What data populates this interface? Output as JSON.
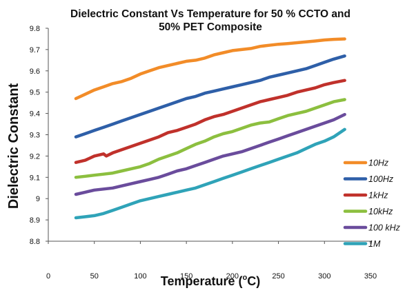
{
  "chart_data": {
    "type": "line",
    "title_line1": "Dielectric Constant Vs Temperature for 50 % CCTO and",
    "title_line2": "50% PET Composite",
    "xlabel_main": "Temperature  (",
    "xlabel_sup": "o",
    "xlabel_end": "C)",
    "ylabel": "Dielectric Constant",
    "xlim": [
      0,
      350
    ],
    "ylim": [
      8.8,
      9.8
    ],
    "xticks": [
      0,
      50,
      100,
      150,
      200,
      250,
      300,
      350
    ],
    "yticks": [
      8.8,
      8.9,
      9,
      9.1,
      9.2,
      9.3,
      9.4,
      9.5,
      9.6,
      9.7,
      9.8
    ],
    "ytick_labels": [
      "8.8",
      "8.9",
      "9",
      "9.1",
      "9.2",
      "9.3",
      "9.4",
      "9.5",
      "9.6",
      "9.7",
      "9.8"
    ],
    "grid": false,
    "legend_position": "right",
    "series": [
      {
        "name": "10Hz",
        "color": "#F28C28",
        "x": [
          30,
          40,
          50,
          60,
          70,
          80,
          90,
          100,
          110,
          120,
          130,
          140,
          150,
          160,
          170,
          180,
          190,
          200,
          210,
          220,
          230,
          240,
          250,
          260,
          270,
          280,
          290,
          300,
          310,
          322
        ],
        "y": [
          9.47,
          9.49,
          9.51,
          9.525,
          9.54,
          9.55,
          9.565,
          9.585,
          9.6,
          9.615,
          9.625,
          9.635,
          9.645,
          9.65,
          9.66,
          9.675,
          9.685,
          9.695,
          9.7,
          9.705,
          9.715,
          9.72,
          9.725,
          9.728,
          9.732,
          9.736,
          9.74,
          9.745,
          9.748,
          9.75
        ]
      },
      {
        "name": "100Hz",
        "color": "#2E5FA8",
        "x": [
          30,
          40,
          50,
          60,
          70,
          80,
          90,
          100,
          110,
          120,
          130,
          140,
          150,
          160,
          170,
          180,
          190,
          200,
          210,
          220,
          230,
          240,
          250,
          260,
          270,
          280,
          290,
          300,
          310,
          322
        ],
        "y": [
          9.29,
          9.305,
          9.32,
          9.335,
          9.35,
          9.365,
          9.38,
          9.395,
          9.41,
          9.425,
          9.44,
          9.455,
          9.47,
          9.48,
          9.495,
          9.505,
          9.515,
          9.525,
          9.535,
          9.545,
          9.555,
          9.57,
          9.58,
          9.59,
          9.6,
          9.61,
          9.625,
          9.64,
          9.655,
          9.67
        ]
      },
      {
        "name": "1kHz",
        "color": "#C0312B",
        "x": [
          30,
          40,
          50,
          60,
          63,
          70,
          80,
          90,
          100,
          110,
          120,
          130,
          140,
          150,
          160,
          170,
          180,
          190,
          200,
          210,
          220,
          230,
          240,
          250,
          260,
          270,
          280,
          290,
          300,
          310,
          322
        ],
        "y": [
          9.17,
          9.18,
          9.2,
          9.21,
          9.2,
          9.215,
          9.23,
          9.245,
          9.26,
          9.275,
          9.29,
          9.31,
          9.32,
          9.335,
          9.35,
          9.37,
          9.385,
          9.395,
          9.41,
          9.425,
          9.44,
          9.455,
          9.465,
          9.475,
          9.485,
          9.5,
          9.51,
          9.52,
          9.535,
          9.545,
          9.555
        ]
      },
      {
        "name": "10kHz",
        "color": "#8CBF3F",
        "x": [
          30,
          40,
          50,
          60,
          70,
          80,
          90,
          100,
          110,
          120,
          130,
          140,
          150,
          160,
          170,
          180,
          190,
          200,
          210,
          220,
          230,
          240,
          250,
          260,
          270,
          280,
          290,
          300,
          310,
          322
        ],
        "y": [
          9.1,
          9.105,
          9.11,
          9.115,
          9.12,
          9.13,
          9.14,
          9.15,
          9.165,
          9.185,
          9.2,
          9.215,
          9.235,
          9.255,
          9.27,
          9.29,
          9.305,
          9.315,
          9.33,
          9.345,
          9.355,
          9.36,
          9.375,
          9.39,
          9.4,
          9.41,
          9.425,
          9.44,
          9.455,
          9.465
        ]
      },
      {
        "name": "100 kHz",
        "color": "#6A4C9C",
        "x": [
          30,
          40,
          50,
          60,
          70,
          80,
          90,
          100,
          110,
          120,
          130,
          140,
          150,
          160,
          170,
          180,
          190,
          200,
          210,
          220,
          230,
          240,
          250,
          260,
          270,
          280,
          290,
          300,
          310,
          322
        ],
        "y": [
          9.02,
          9.03,
          9.04,
          9.045,
          9.05,
          9.06,
          9.07,
          9.08,
          9.09,
          9.1,
          9.115,
          9.13,
          9.14,
          9.155,
          9.17,
          9.185,
          9.2,
          9.21,
          9.22,
          9.235,
          9.25,
          9.265,
          9.28,
          9.295,
          9.31,
          9.325,
          9.34,
          9.355,
          9.37,
          9.395
        ]
      },
      {
        "name": "1M",
        "color": "#2FA3B8",
        "x": [
          30,
          40,
          50,
          60,
          70,
          80,
          90,
          100,
          110,
          120,
          130,
          140,
          150,
          160,
          170,
          180,
          190,
          200,
          210,
          220,
          230,
          240,
          250,
          260,
          270,
          280,
          290,
          300,
          310,
          322
        ],
        "y": [
          8.91,
          8.915,
          8.92,
          8.93,
          8.945,
          8.96,
          8.975,
          8.99,
          9.0,
          9.01,
          9.02,
          9.03,
          9.04,
          9.05,
          9.065,
          9.08,
          9.095,
          9.11,
          9.125,
          9.14,
          9.155,
          9.17,
          9.185,
          9.2,
          9.215,
          9.235,
          9.255,
          9.27,
          9.29,
          9.325
        ]
      }
    ]
  }
}
